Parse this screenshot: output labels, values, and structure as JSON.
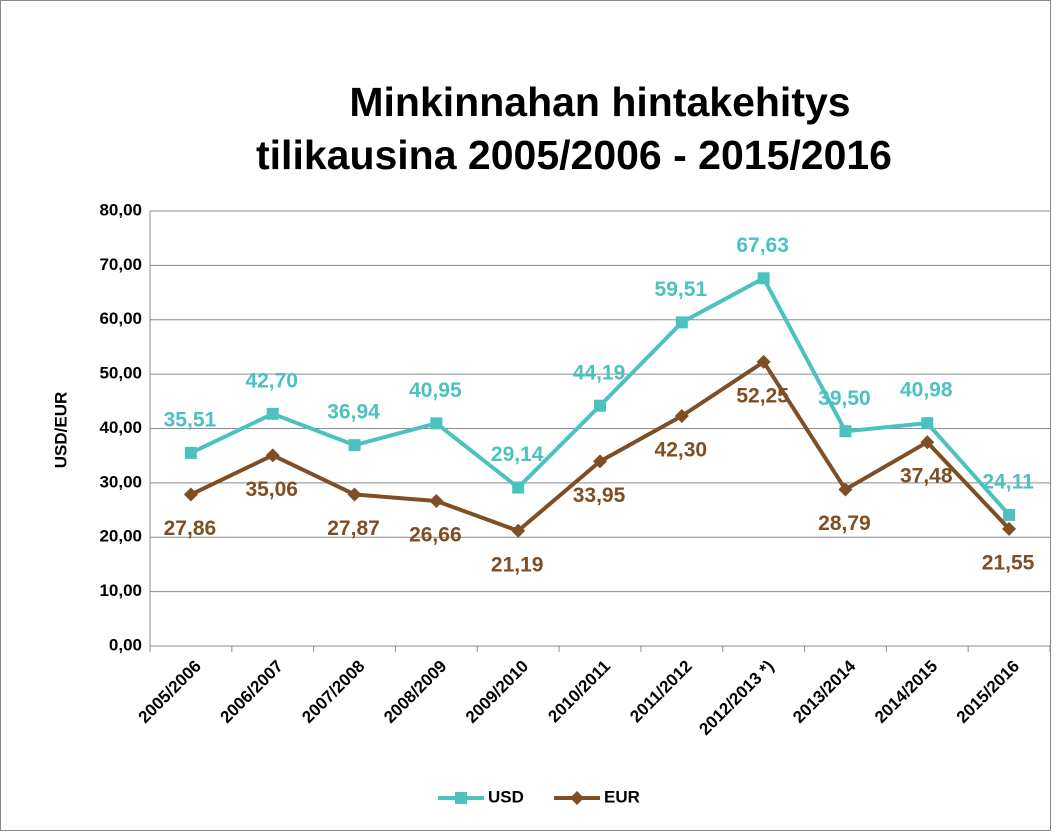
{
  "chart_data": {
    "type": "line",
    "title": "Minkinnahan hintakehitys",
    "subtitle": "tilikausina 2005/2006 - 2015/2016",
    "y_label": "USD/EUR",
    "categories": [
      "2005/2006",
      "2006/2007",
      "2007/2008",
      "2008/2009",
      "2009/2010",
      "2010/2011",
      "2011/2012",
      "2012/2013 *)",
      "2013/2014",
      "2014/2015",
      "2015/2016"
    ],
    "series": [
      {
        "name": "USD",
        "color": "#4bc2bf",
        "marker": "square",
        "values": [
          35.51,
          42.7,
          36.94,
          40.95,
          29.14,
          44.19,
          59.51,
          67.63,
          39.5,
          40.98,
          24.11
        ],
        "value_labels": [
          "35,51",
          "42,70",
          "36,94",
          "40,95",
          "29,14",
          "44,19",
          "59,51",
          "67,63",
          "39,50",
          "40,98",
          "24,11"
        ]
      },
      {
        "name": "EUR",
        "color": "#7f4e24",
        "marker": "diamond",
        "values": [
          27.86,
          35.06,
          27.87,
          26.66,
          21.19,
          33.95,
          42.3,
          52.25,
          28.79,
          37.48,
          21.55
        ],
        "value_labels": [
          "27,86",
          "35,06",
          "27,87",
          "26,66",
          "21,19",
          "33,95",
          "42,30",
          "52,25",
          "28,79",
          "37,48",
          "21,55"
        ]
      }
    ],
    "ylim": [
      0,
      80
    ],
    "yticks": [
      {
        "value": 0,
        "label": "0,00"
      },
      {
        "value": 10,
        "label": "10,00"
      },
      {
        "value": 20,
        "label": "20,00"
      },
      {
        "value": 30,
        "label": "30,00"
      },
      {
        "value": 40,
        "label": "40,00"
      },
      {
        "value": 50,
        "label": "50,00"
      },
      {
        "value": 60,
        "label": "60,00"
      },
      {
        "value": 70,
        "label": "70,00"
      },
      {
        "value": 80,
        "label": "80,00"
      }
    ],
    "grid": true,
    "legend": "bottom"
  }
}
